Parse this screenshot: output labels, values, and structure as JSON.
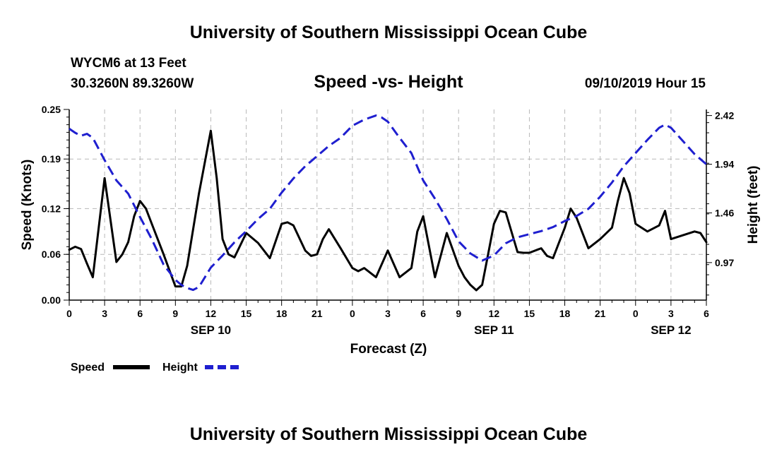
{
  "header": {
    "title_top": "University of Southern Mississippi Ocean Cube",
    "title_bottom": "University of Southern Mississippi Ocean Cube",
    "station": "WYCM6 at 13 Feet",
    "coords": "30.3260N 89.3260W",
    "datetime": "09/10/2019 Hour 15"
  },
  "chart_data": {
    "type": "line",
    "title": "Speed -vs- Height",
    "xlabel": "Forecast (Z)",
    "ylabel_left": "Speed (Knots)",
    "ylabel_right": "Height (feet)",
    "xlim": [
      0,
      54
    ],
    "ylim_left": [
      0,
      0.25
    ],
    "ylim_right": [
      0.6,
      2.48
    ],
    "x_tick_values": [
      0,
      3,
      6,
      9,
      12,
      15,
      18,
      21,
      24,
      27,
      30,
      33,
      36,
      39,
      42,
      45,
      48,
      51,
      54
    ],
    "x_tick_labels": [
      "0",
      "3",
      "6",
      "9",
      "12",
      "15",
      "18",
      "21",
      "0",
      "3",
      "6",
      "9",
      "12",
      "15",
      "18",
      "21",
      "0",
      "3",
      "6"
    ],
    "left_ticks": [
      {
        "value": 0.0,
        "label": "0.00"
      },
      {
        "value": 0.06,
        "label": "0.06"
      },
      {
        "value": 0.12,
        "label": "0.12"
      },
      {
        "value": 0.185,
        "label": "0.19"
      },
      {
        "value": 0.25,
        "label": "0.25"
      }
    ],
    "right_ticks": [
      {
        "value": 0.97,
        "label": "0.97"
      },
      {
        "value": 1.46,
        "label": "1.46"
      },
      {
        "value": 1.94,
        "label": "1.94"
      },
      {
        "value": 2.42,
        "label": "2.42"
      }
    ],
    "date_labels": [
      {
        "hour": 12,
        "label": "SEP 10"
      },
      {
        "hour": 36,
        "label": "SEP 11"
      },
      {
        "hour": 51,
        "label": "SEP 12"
      }
    ],
    "legend": "bottom-left",
    "series": [
      {
        "name": "Speed",
        "color": "#000000",
        "style": "solid",
        "axis": "left",
        "x": [
          0,
          0.5,
          1,
          1.5,
          2,
          3,
          4,
          4.5,
          5,
          5.5,
          6,
          6.5,
          7,
          8,
          9,
          9.5,
          10,
          11,
          12,
          12.5,
          13,
          13.5,
          14,
          15,
          16,
          17,
          18,
          18.5,
          19,
          20,
          20.5,
          21,
          21.5,
          22,
          23,
          24,
          24.5,
          25,
          26,
          27,
          28,
          29,
          29.5,
          30,
          31,
          32,
          33,
          33.5,
          34,
          34.5,
          35,
          35.5,
          36,
          36.5,
          37,
          38,
          38.5,
          39,
          40,
          40.5,
          41,
          41.5,
          42,
          42.5,
          43,
          44,
          45,
          46,
          46.5,
          47,
          47.5,
          48,
          49,
          50,
          50.5,
          51,
          52,
          53,
          53.5,
          54
        ],
        "y": [
          0.066,
          0.07,
          0.067,
          0.048,
          0.03,
          0.16,
          0.05,
          0.06,
          0.076,
          0.11,
          0.13,
          0.12,
          0.1,
          0.06,
          0.018,
          0.018,
          0.045,
          0.14,
          0.222,
          0.16,
          0.08,
          0.06,
          0.056,
          0.088,
          0.075,
          0.055,
          0.1,
          0.102,
          0.098,
          0.065,
          0.058,
          0.06,
          0.08,
          0.093,
          0.068,
          0.042,
          0.038,
          0.042,
          0.03,
          0.065,
          0.03,
          0.042,
          0.09,
          0.11,
          0.03,
          0.088,
          0.045,
          0.03,
          0.02,
          0.013,
          0.02,
          0.06,
          0.1,
          0.117,
          0.115,
          0.063,
          0.062,
          0.062,
          0.068,
          0.058,
          0.055,
          0.075,
          0.095,
          0.12,
          0.108,
          0.068,
          0.08,
          0.095,
          0.13,
          0.16,
          0.14,
          0.1,
          0.09,
          0.098,
          0.117,
          0.08,
          0.085,
          0.09,
          0.088,
          0.076
        ]
      },
      {
        "name": "Height",
        "color": "#1f1fcf",
        "style": "dashed",
        "axis": "right",
        "x": [
          0,
          0.5,
          1,
          1.5,
          2,
          3,
          4,
          5,
          6,
          7,
          8,
          9,
          9.5,
          10,
          10.5,
          11,
          12,
          13,
          14,
          15,
          16,
          17,
          18,
          19,
          20,
          21,
          22,
          23,
          24,
          25,
          26,
          26.5,
          27,
          28,
          29,
          30,
          31,
          32,
          33,
          34,
          35,
          36,
          37,
          38,
          39,
          40,
          41,
          42,
          43,
          44,
          45,
          46,
          47,
          48,
          49,
          50,
          50.5,
          51,
          52,
          53,
          54
        ],
        "y": [
          2.29,
          2.25,
          2.22,
          2.24,
          2.2,
          1.98,
          1.78,
          1.65,
          1.42,
          1.2,
          0.95,
          0.8,
          0.75,
          0.72,
          0.7,
          0.73,
          0.92,
          1.04,
          1.17,
          1.28,
          1.4,
          1.5,
          1.66,
          1.8,
          1.92,
          2.02,
          2.12,
          2.2,
          2.32,
          2.38,
          2.42,
          2.4,
          2.36,
          2.2,
          2.05,
          1.78,
          1.6,
          1.4,
          1.18,
          1.06,
          0.99,
          1.04,
          1.16,
          1.22,
          1.25,
          1.28,
          1.32,
          1.38,
          1.43,
          1.5,
          1.62,
          1.76,
          1.92,
          2.05,
          2.18,
          2.3,
          2.33,
          2.3,
          2.17,
          2.04,
          1.94
        ]
      }
    ]
  }
}
